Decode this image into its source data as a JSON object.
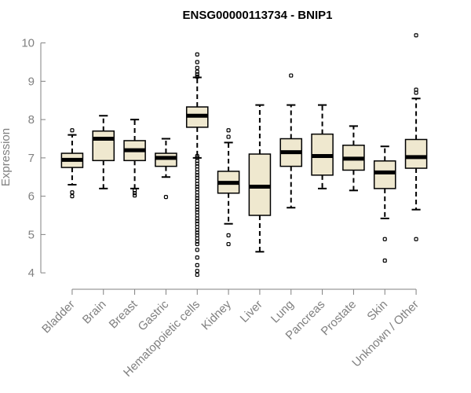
{
  "chart_data": {
    "type": "boxplot",
    "title": "ENSG00000113734 - BNIP1",
    "xlabel": "",
    "ylabel": "Expression",
    "ylim": [
      3.9,
      10.3
    ],
    "yticks": [
      4,
      5,
      6,
      7,
      8,
      9,
      10
    ],
    "grid": false,
    "legend": "none",
    "colors": {
      "box_fill": "#efe8cf",
      "line": "#000000",
      "axis": "#808080"
    },
    "categories": [
      "Bladder",
      "Brain",
      "Breast",
      "Gastric",
      "Hematopoietic cells",
      "Kidney",
      "Liver",
      "Lung",
      "Pancreas",
      "Prostate",
      "Skin",
      "Unknown / Other"
    ],
    "boxes": [
      {
        "label": "Bladder",
        "whisker_low": 6.3,
        "q1": 6.75,
        "median": 6.95,
        "q3": 7.12,
        "whisker_high": 7.6,
        "outliers": [
          7.72,
          6.1,
          6.0
        ]
      },
      {
        "label": "Brain",
        "whisker_low": 6.2,
        "q1": 6.93,
        "median": 7.5,
        "q3": 7.7,
        "whisker_high": 8.1,
        "outliers": []
      },
      {
        "label": "Breast",
        "whisker_low": 6.2,
        "q1": 6.93,
        "median": 7.2,
        "q3": 7.45,
        "whisker_high": 8.0,
        "outliers": [
          6.15,
          6.08,
          6.02
        ]
      },
      {
        "label": "Gastric",
        "whisker_low": 6.5,
        "q1": 6.78,
        "median": 7.0,
        "q3": 7.12,
        "whisker_high": 7.5,
        "outliers": [
          5.98
        ]
      },
      {
        "label": "Hematopoietic cells",
        "whisker_low": 7.0,
        "q1": 7.8,
        "median": 8.1,
        "q3": 8.33,
        "whisker_high": 9.1,
        "outliers": [
          9.7,
          9.5,
          9.35,
          9.25,
          9.18,
          9.12,
          7.05,
          7.0,
          6.92,
          6.85,
          6.78,
          6.7,
          6.62,
          6.55,
          6.48,
          6.4,
          6.32,
          6.25,
          6.18,
          6.1,
          6.02,
          5.95,
          5.88,
          5.8,
          5.72,
          5.65,
          5.58,
          5.5,
          5.42,
          5.35,
          5.28,
          5.2,
          5.12,
          5.05,
          4.98,
          4.9,
          4.82,
          4.75,
          4.6,
          4.4,
          4.2,
          4.05,
          3.95
        ]
      },
      {
        "label": "Kidney",
        "whisker_low": 5.28,
        "q1": 6.08,
        "median": 6.35,
        "q3": 6.65,
        "whisker_high": 7.4,
        "outliers": [
          7.72,
          7.55,
          4.98,
          4.75
        ]
      },
      {
        "label": "Liver",
        "whisker_low": 4.55,
        "q1": 5.5,
        "median": 6.25,
        "q3": 7.1,
        "whisker_high": 8.38,
        "outliers": []
      },
      {
        "label": "Lung",
        "whisker_low": 5.7,
        "q1": 6.78,
        "median": 7.15,
        "q3": 7.5,
        "whisker_high": 8.38,
        "outliers": [
          9.15
        ]
      },
      {
        "label": "Pancreas",
        "whisker_low": 6.2,
        "q1": 6.55,
        "median": 7.05,
        "q3": 7.62,
        "whisker_high": 8.38,
        "outliers": []
      },
      {
        "label": "Prostate",
        "whisker_low": 6.15,
        "q1": 6.68,
        "median": 6.98,
        "q3": 7.33,
        "whisker_high": 7.83,
        "outliers": []
      },
      {
        "label": "Skin",
        "whisker_low": 5.42,
        "q1": 6.2,
        "median": 6.62,
        "q3": 6.92,
        "whisker_high": 7.3,
        "outliers": [
          4.88,
          4.32
        ]
      },
      {
        "label": "Unknown / Other",
        "whisker_low": 5.65,
        "q1": 6.73,
        "median": 7.02,
        "q3": 7.48,
        "whisker_high": 8.55,
        "outliers": [
          10.2,
          8.78,
          8.7,
          4.88
        ]
      }
    ]
  }
}
